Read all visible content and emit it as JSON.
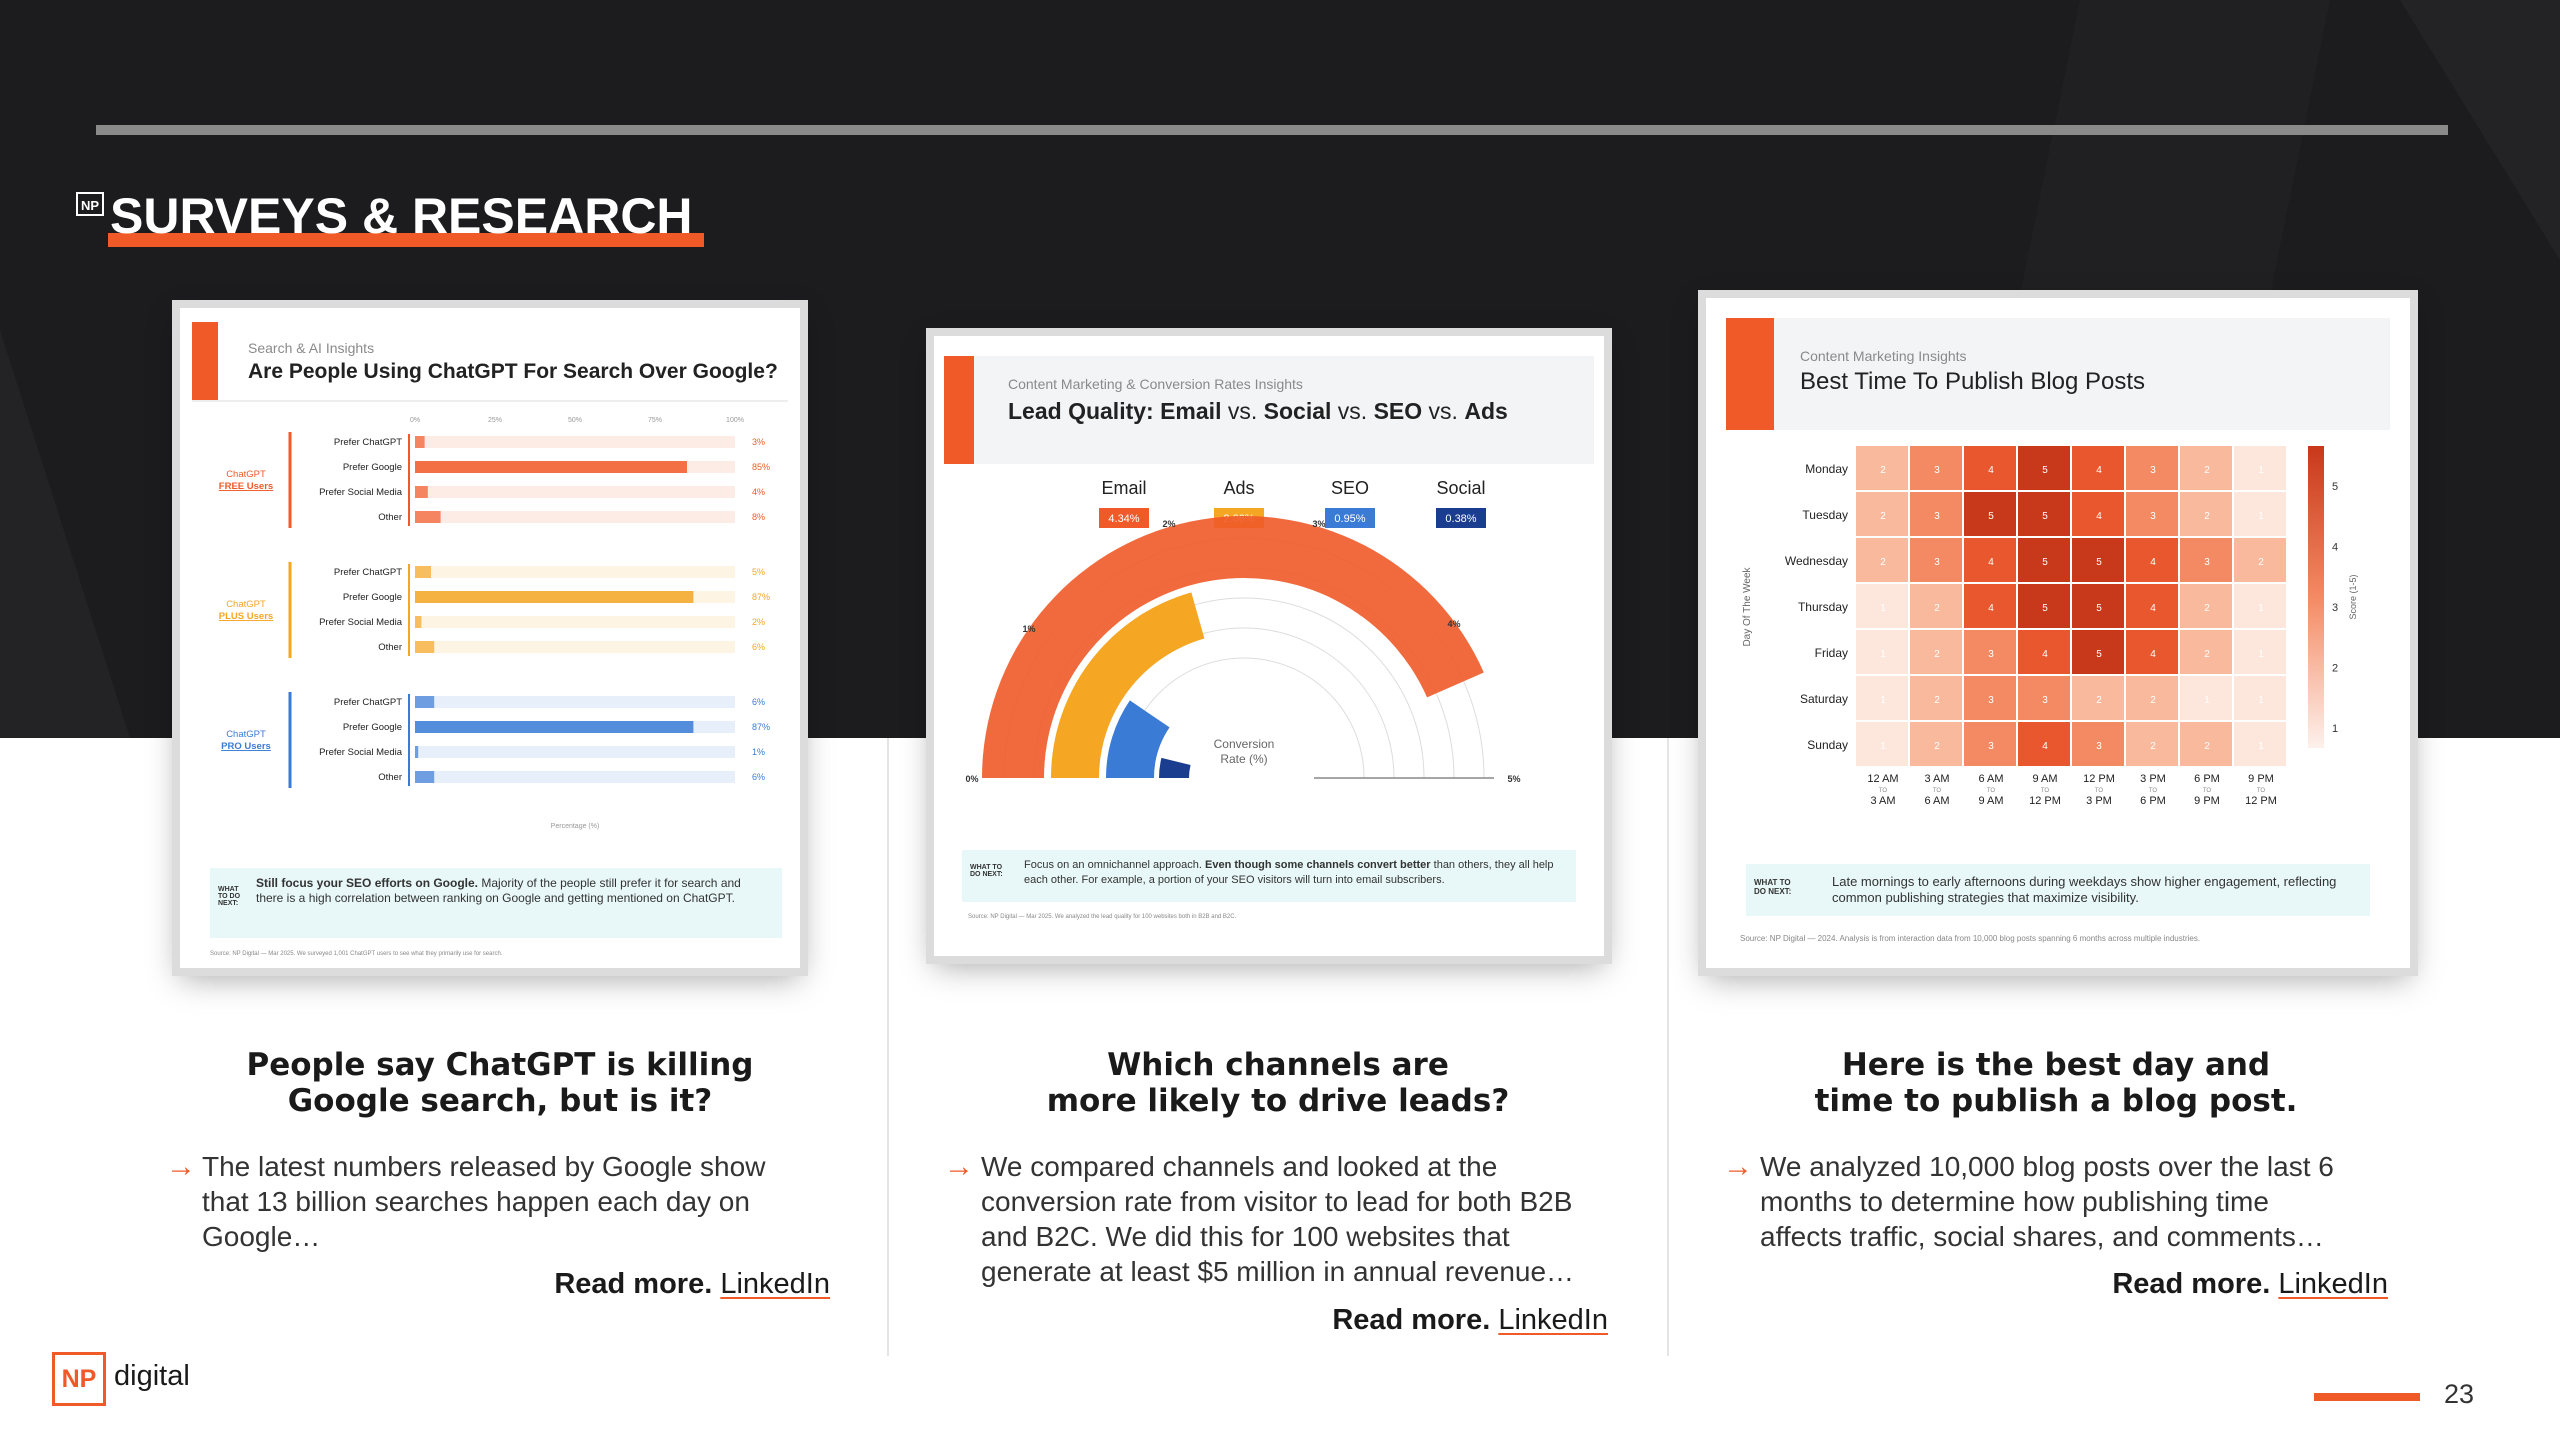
{
  "section": {
    "title": "SURVEYS & RESEARCH",
    "badge": "NP"
  },
  "cards": [
    {
      "category": "Search & AI Insights",
      "title": "Are People Using ChatGPT For Search Over Google?",
      "axis_ticks": [
        "0%",
        "25%",
        "50%",
        "75%",
        "100%"
      ],
      "axis_label": "Percentage (%)",
      "groups": [
        {
          "label": "ChatGPT FREE Users",
          "label_line1": "ChatGPT",
          "label_line2": "FREE Users",
          "color": "#f05a28",
          "rows": [
            {
              "label": "Prefer ChatGPT",
              "value": 3,
              "text": "3%"
            },
            {
              "label": "Prefer Google",
              "value": 85,
              "text": "85%"
            },
            {
              "label": "Prefer Social Media",
              "value": 4,
              "text": "4%"
            },
            {
              "label": "Other",
              "value": 8,
              "text": "8%"
            }
          ]
        },
        {
          "label": "ChatGPT PLUS Users",
          "label_line1": "ChatGPT",
          "label_line2": "PLUS Users",
          "color": "#f5a623",
          "rows": [
            {
              "label": "Prefer ChatGPT",
              "value": 5,
              "text": "5%"
            },
            {
              "label": "Prefer Google",
              "value": 87,
              "text": "87%"
            },
            {
              "label": "Prefer Social Media",
              "value": 2,
              "text": "2%"
            },
            {
              "label": "Other",
              "value": 6,
              "text": "6%"
            }
          ]
        },
        {
          "label": "ChatGPT PRO Users",
          "label_line1": "ChatGPT",
          "label_line2": "PRO Users",
          "color": "#3a7bd5",
          "rows": [
            {
              "label": "Prefer ChatGPT",
              "value": 6,
              "text": "6%"
            },
            {
              "label": "Prefer Google",
              "value": 87,
              "text": "87%"
            },
            {
              "label": "Prefer Social Media",
              "value": 1,
              "text": "1%"
            },
            {
              "label": "Other",
              "value": 6,
              "text": "6%"
            }
          ]
        }
      ],
      "what_to_do_label": "WHAT TO DO NEXT:",
      "what_to_do_bold": "Still focus your SEO efforts on Google.",
      "what_to_do_text": "Majority of the people still prefer it for search and there is a high correlation between ranking on Google and getting mentioned on ChatGPT.",
      "source": "Source: NP Digital — Mar 2025. We surveyed 1,001 ChatGPT users to see what they primarily use for search.",
      "heading_line1": "People say ChatGPT is killing",
      "heading_line2": "Google search, but is it?",
      "body_lines": [
        "The latest numbers released by Google show",
        "that 13 billion searches happen each day on",
        "Google…"
      ],
      "readmore_label": "Read more.",
      "link_label": "LinkedIn"
    },
    {
      "category": "Content Marketing & Conversion Rates Insights",
      "title_parts": [
        "Lead Quality: ",
        "Email",
        " vs. ",
        "Social",
        " vs. ",
        "SEO",
        " vs. ",
        "Ads"
      ],
      "legend": [
        {
          "name": "Email",
          "value": "4.34%",
          "color": "#f05a28"
        },
        {
          "name": "Ads",
          "value": "2.06%",
          "color": "#f5a623"
        },
        {
          "name": "SEO",
          "value": "0.95%",
          "color": "#3a7bd5"
        },
        {
          "name": "Social",
          "value": "0.38%",
          "color": "#1a3d8f"
        }
      ],
      "gauge_ticks": [
        "0%",
        "1%",
        "2%",
        "3%",
        "4%",
        "5%"
      ],
      "gauge_center": "Conversion Rate (%)",
      "what_to_do_label": "WHAT TO DO NEXT:",
      "what_to_do_pre": "Focus on an omnichannel approach.",
      "what_to_do_bold": "Even though some channels convert better",
      "what_to_do_text": "than others, they all help each other. For example, a portion of your SEO visitors will turn into email subscribers.",
      "source": "Source: NP Digital — Mar 2025. We analyzed the lead quality for 100 websites both in B2B and B2C.",
      "heading_line1": "Which channels are",
      "heading_line2": "more likely to drive leads?",
      "body_lines": [
        "We compared channels and looked at the",
        "conversion rate from visitor to lead for both B2B",
        "and B2C. We did this for 100 websites that",
        "generate at least $5 million in annual revenue…"
      ],
      "readmore_label": "Read more.",
      "link_label": "LinkedIn"
    },
    {
      "category": "Content Marketing Insights",
      "title": "Best Time To Publish Blog Posts",
      "y_axis_label": "Day Of The Week",
      "score_label": "Score (1-5)",
      "days": [
        "Monday",
        "Tuesday",
        "Wednesday",
        "Thursday",
        "Friday",
        "Saturday",
        "Sunday"
      ],
      "time_slots": [
        [
          "12 AM",
          "3 AM"
        ],
        [
          "3 AM",
          "6 AM"
        ],
        [
          "6 AM",
          "9 AM"
        ],
        [
          "9 AM",
          "12 PM"
        ],
        [
          "12 PM",
          "3 PM"
        ],
        [
          "3 PM",
          "6 PM"
        ],
        [
          "6 PM",
          "9 PM"
        ],
        [
          "9 PM",
          "12 PM"
        ]
      ],
      "scores": [
        [
          2,
          3,
          4,
          5,
          4,
          3,
          2,
          1
        ],
        [
          2,
          3,
          5,
          5,
          4,
          3,
          2,
          1
        ],
        [
          2,
          3,
          4,
          5,
          5,
          4,
          3,
          2
        ],
        [
          1,
          2,
          4,
          5,
          5,
          4,
          2,
          1
        ],
        [
          1,
          2,
          3,
          4,
          5,
          4,
          2,
          1
        ],
        [
          1,
          2,
          3,
          3,
          2,
          2,
          1,
          1
        ],
        [
          1,
          2,
          3,
          4,
          3,
          2,
          2,
          1
        ]
      ],
      "scale_ticks": [
        "5",
        "4",
        "3",
        "2",
        "1"
      ],
      "what_to_do_label": "WHAT TO DO NEXT:",
      "what_to_do_text": "Late mornings to early afternoons during weekdays show higher engagement, reflecting common publishing strategies that maximize visibility.",
      "source": "Source: NP Digital — 2024. Analysis is from interaction data from 10,000 blog posts spanning 6 months across multiple industries.",
      "heading_line1": "Here is the best day and",
      "heading_line2": "time to publish a blog post.",
      "body_lines": [
        "We analyzed 10,000 blog posts over the last 6",
        "months to determine how publishing time",
        "affects traffic, social shares, and comments…"
      ],
      "readmore_label": "Read more.",
      "link_label": "LinkedIn"
    }
  ],
  "footer": {
    "logo_np": "NP",
    "logo_text": "digital",
    "page_number": "23"
  },
  "colors": {
    "accent": "#f05a28",
    "dark": "#1c1c1e"
  }
}
